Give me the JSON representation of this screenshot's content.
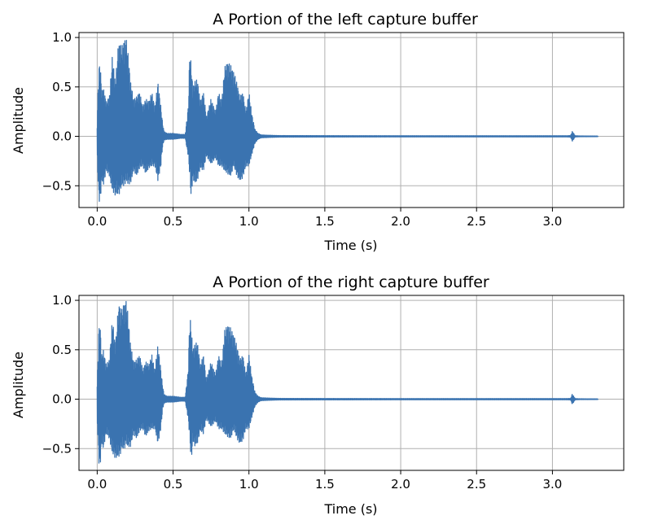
{
  "chart_data": [
    {
      "type": "line",
      "title": "A Portion of the left capture buffer",
      "xlabel": "Time (s)",
      "ylabel": "Amplitude",
      "xlim": [
        -0.12,
        3.47
      ],
      "ylim": [
        -0.72,
        1.05
      ],
      "xticks": [
        0.0,
        0.5,
        1.0,
        1.5,
        2.0,
        2.5,
        3.0
      ],
      "xtick_labels": [
        "0.0",
        "0.5",
        "1.0",
        "1.5",
        "2.0",
        "2.5",
        "3.0"
      ],
      "yticks": [
        -0.5,
        0.0,
        0.5,
        1.0
      ],
      "ytick_labels": [
        "−0.5",
        "0.0",
        "0.5",
        "1.0"
      ],
      "grid": true,
      "line_color": "#3a73b0",
      "series": [
        {
          "envelope_time": [
            0.0,
            0.01,
            0.02,
            0.03,
            0.04,
            0.06,
            0.08,
            0.1,
            0.12,
            0.14,
            0.15,
            0.16,
            0.18,
            0.19,
            0.2,
            0.22,
            0.24,
            0.26,
            0.28,
            0.3,
            0.32,
            0.34,
            0.36,
            0.38,
            0.4,
            0.42,
            0.43,
            0.44,
            0.46,
            0.5,
            0.55,
            0.58,
            0.6,
            0.61,
            0.62,
            0.63,
            0.64,
            0.66,
            0.68,
            0.7,
            0.72,
            0.75,
            0.78,
            0.8,
            0.82,
            0.84,
            0.86,
            0.88,
            0.9,
            0.92,
            0.94,
            0.96,
            0.98,
            1.0,
            1.02,
            1.04,
            1.06,
            1.08,
            1.12,
            1.2,
            1.5,
            2.0,
            2.5,
            3.0,
            3.1,
            3.12,
            3.13,
            3.14,
            3.15,
            3.18,
            3.3
          ],
          "envelope_max": [
            0.15,
            0.72,
            0.73,
            0.45,
            0.5,
            0.35,
            0.4,
            0.82,
            0.55,
            0.95,
            0.95,
            0.9,
            0.98,
            1.0,
            0.9,
            0.55,
            0.38,
            0.4,
            0.45,
            0.3,
            0.38,
            0.35,
            0.45,
            0.3,
            0.55,
            0.3,
            0.15,
            0.05,
            0.03,
            0.03,
            0.02,
            0.02,
            0.3,
            0.86,
            0.72,
            0.5,
            0.55,
            0.58,
            0.35,
            0.45,
            0.2,
            0.38,
            0.25,
            0.45,
            0.35,
            0.7,
            0.75,
            0.72,
            0.65,
            0.55,
            0.4,
            0.45,
            0.25,
            0.45,
            0.22,
            0.07,
            0.03,
            0.015,
            0.012,
            0.008,
            0.007,
            0.006,
            0.006,
            0.006,
            0.006,
            0.008,
            0.05,
            0.03,
            0.006,
            0.004,
            0.003
          ],
          "envelope_min": [
            -0.2,
            -0.65,
            -0.67,
            -0.45,
            -0.5,
            -0.35,
            -0.4,
            -0.55,
            -0.6,
            -0.58,
            -0.58,
            -0.5,
            -0.5,
            -0.45,
            -0.48,
            -0.48,
            -0.35,
            -0.4,
            -0.32,
            -0.3,
            -0.38,
            -0.32,
            -0.3,
            -0.3,
            -0.45,
            -0.3,
            -0.12,
            -0.04,
            -0.03,
            -0.03,
            -0.02,
            -0.02,
            -0.2,
            -0.4,
            -0.65,
            -0.4,
            -0.48,
            -0.45,
            -0.32,
            -0.35,
            -0.2,
            -0.28,
            -0.22,
            -0.3,
            -0.3,
            -0.35,
            -0.38,
            -0.4,
            -0.3,
            -0.4,
            -0.45,
            -0.42,
            -0.3,
            -0.3,
            -0.18,
            -0.07,
            -0.03,
            -0.015,
            -0.012,
            -0.008,
            -0.007,
            -0.006,
            -0.006,
            -0.006,
            -0.006,
            -0.008,
            -0.05,
            -0.03,
            -0.006,
            -0.004,
            -0.003
          ]
        }
      ]
    },
    {
      "type": "line",
      "title": "A Portion of the right capture buffer",
      "xlabel": "Time (s)",
      "ylabel": "Amplitude",
      "xlim": [
        -0.12,
        3.47
      ],
      "ylim": [
        -0.72,
        1.05
      ],
      "xticks": [
        0.0,
        0.5,
        1.0,
        1.5,
        2.0,
        2.5,
        3.0
      ],
      "xtick_labels": [
        "0.0",
        "0.5",
        "1.0",
        "1.5",
        "2.0",
        "2.5",
        "3.0"
      ],
      "yticks": [
        -0.5,
        0.0,
        0.5,
        1.0
      ],
      "ytick_labels": [
        "−0.5",
        "0.0",
        "0.5",
        "1.0"
      ],
      "grid": true,
      "line_color": "#3a73b0",
      "series": [
        {
          "envelope_time": [
            0.0,
            0.01,
            0.02,
            0.03,
            0.04,
            0.06,
            0.08,
            0.1,
            0.12,
            0.14,
            0.15,
            0.16,
            0.18,
            0.19,
            0.2,
            0.22,
            0.24,
            0.26,
            0.28,
            0.3,
            0.32,
            0.34,
            0.36,
            0.38,
            0.4,
            0.42,
            0.43,
            0.44,
            0.46,
            0.5,
            0.55,
            0.58,
            0.6,
            0.61,
            0.62,
            0.63,
            0.64,
            0.66,
            0.68,
            0.7,
            0.72,
            0.75,
            0.78,
            0.8,
            0.82,
            0.84,
            0.86,
            0.88,
            0.9,
            0.92,
            0.94,
            0.96,
            0.98,
            1.0,
            1.02,
            1.04,
            1.06,
            1.08,
            1.12,
            1.2,
            1.5,
            2.0,
            2.5,
            3.0,
            3.1,
            3.12,
            3.13,
            3.14,
            3.15,
            3.18,
            3.3
          ],
          "envelope_max": [
            0.15,
            0.72,
            0.73,
            0.45,
            0.5,
            0.35,
            0.4,
            0.82,
            0.55,
            0.95,
            0.95,
            0.9,
            0.98,
            1.0,
            0.9,
            0.55,
            0.38,
            0.4,
            0.45,
            0.3,
            0.38,
            0.35,
            0.45,
            0.3,
            0.55,
            0.3,
            0.15,
            0.05,
            0.03,
            0.03,
            0.02,
            0.02,
            0.3,
            0.86,
            0.72,
            0.5,
            0.55,
            0.58,
            0.35,
            0.45,
            0.2,
            0.38,
            0.25,
            0.45,
            0.35,
            0.7,
            0.75,
            0.72,
            0.65,
            0.55,
            0.4,
            0.45,
            0.25,
            0.45,
            0.22,
            0.07,
            0.03,
            0.015,
            0.012,
            0.008,
            0.007,
            0.006,
            0.006,
            0.006,
            0.006,
            0.008,
            0.05,
            0.03,
            0.006,
            0.004,
            0.003
          ],
          "envelope_min": [
            -0.2,
            -0.65,
            -0.67,
            -0.45,
            -0.5,
            -0.35,
            -0.4,
            -0.55,
            -0.6,
            -0.58,
            -0.58,
            -0.5,
            -0.5,
            -0.45,
            -0.48,
            -0.48,
            -0.35,
            -0.4,
            -0.32,
            -0.3,
            -0.38,
            -0.32,
            -0.3,
            -0.3,
            -0.45,
            -0.3,
            -0.12,
            -0.04,
            -0.03,
            -0.03,
            -0.02,
            -0.02,
            -0.2,
            -0.4,
            -0.65,
            -0.4,
            -0.48,
            -0.45,
            -0.32,
            -0.35,
            -0.2,
            -0.28,
            -0.22,
            -0.3,
            -0.3,
            -0.35,
            -0.38,
            -0.4,
            -0.3,
            -0.4,
            -0.45,
            -0.42,
            -0.3,
            -0.3,
            -0.18,
            -0.07,
            -0.03,
            -0.015,
            -0.012,
            -0.008,
            -0.007,
            -0.006,
            -0.006,
            -0.006,
            -0.006,
            -0.008,
            -0.05,
            -0.03,
            -0.006,
            -0.004,
            -0.003
          ]
        }
      ]
    }
  ]
}
